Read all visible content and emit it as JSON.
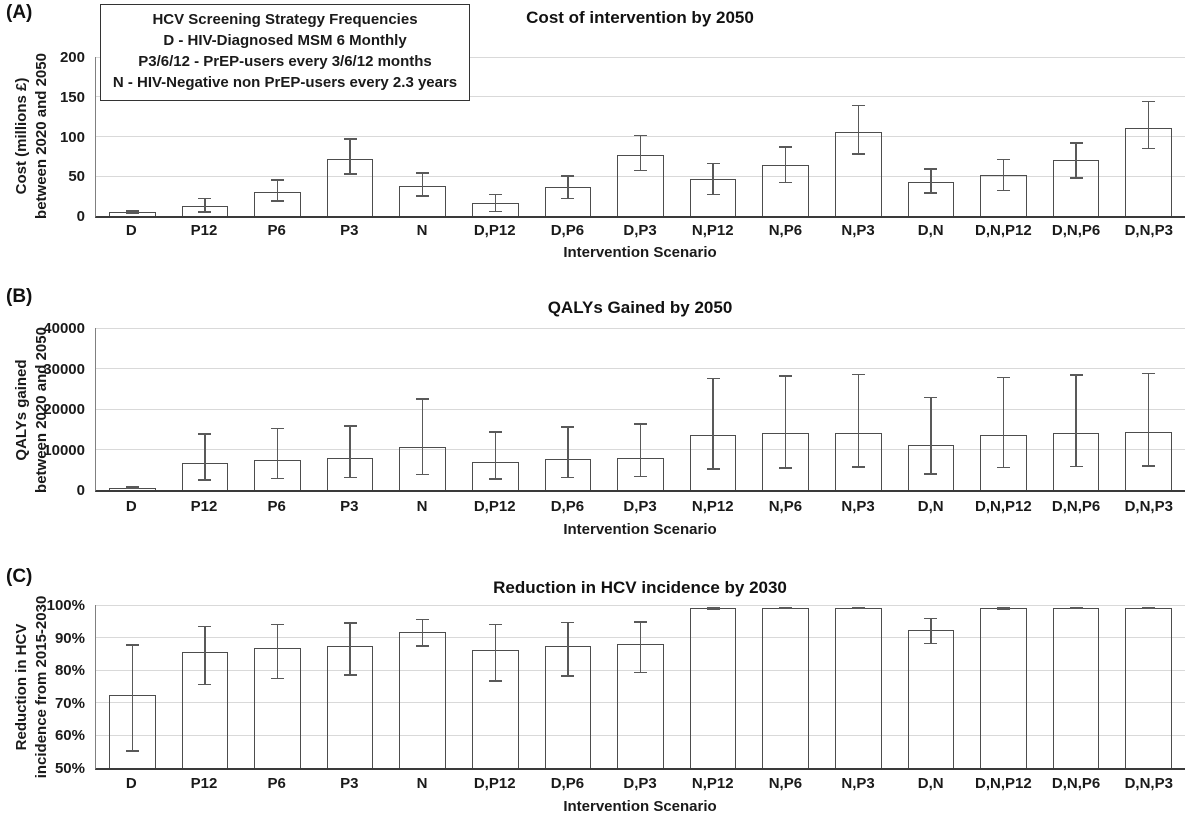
{
  "figure": {
    "legend_box": {
      "title": "HCV Screening Strategy Frequencies",
      "lines": [
        "D - HIV-Diagnosed MSM 6 Monthly",
        "P3/6/12 - PrEP-users every 3/6/12 months",
        "N - HIV-Negative non PrEP-users every 2.3 years"
      ]
    },
    "colors": {
      "bar_border": "#4d4d4d",
      "error_bar": "#595959",
      "gridline": "#d9d9d9",
      "axis": "#3a3a3a",
      "text": "#1a1a1a",
      "background": "#ffffff"
    }
  },
  "chart_data": [
    {
      "type": "bar",
      "panel_label": "(A)",
      "title": "Cost of intervention by 2050",
      "xlabel": "Intervention Scenario",
      "ylabel": "Cost (millions £)\nbetween 2020 and 2050",
      "ylim": [
        0,
        200
      ],
      "yticks": [
        0,
        50,
        100,
        150,
        200
      ],
      "ytick_suffix": "",
      "grid": true,
      "error_bars": true,
      "categories": [
        "D",
        "P12",
        "P6",
        "P3",
        "N",
        "D,P12",
        "D,P6",
        "D,P3",
        "N,P12",
        "N,P6",
        "N,P3",
        "D,N",
        "D,N,P12",
        "D,N,P6",
        "D,N,P3"
      ],
      "values": [
        5,
        12,
        30,
        72,
        38,
        17,
        36,
        77,
        46,
        64,
        106,
        43,
        51,
        70,
        111
      ],
      "error_low": [
        3,
        4,
        18,
        52,
        24,
        5,
        21,
        56,
        26,
        41,
        77,
        28,
        31,
        47,
        84
      ],
      "error_high": [
        7,
        23,
        46,
        98,
        55,
        28,
        51,
        102,
        67,
        88,
        140,
        60,
        72,
        93,
        145
      ]
    },
    {
      "type": "bar",
      "panel_label": "(B)",
      "title": "QALYs Gained by 2050",
      "xlabel": "Intervention Scenario",
      "ylabel": "QALYs gained\nbetween 2020 and 2050",
      "ylim": [
        0,
        40000
      ],
      "yticks": [
        0,
        10000,
        20000,
        30000,
        40000
      ],
      "ytick_suffix": "",
      "grid": true,
      "error_bars": true,
      "categories": [
        "D",
        "P12",
        "P6",
        "P3",
        "N",
        "D,P12",
        "D,P6",
        "D,P3",
        "N,P12",
        "N,P6",
        "N,P3",
        "D,N",
        "D,N,P12",
        "D,N,P6",
        "D,N,P3"
      ],
      "values": [
        500,
        6700,
        7400,
        7800,
        10700,
        7000,
        7700,
        8000,
        13700,
        14000,
        14200,
        11000,
        13700,
        14200,
        14300
      ],
      "error_low": [
        200,
        2300,
        2700,
        2900,
        3700,
        2500,
        2900,
        3100,
        5000,
        5300,
        5500,
        3800,
        5400,
        5600,
        5800
      ],
      "error_high": [
        900,
        14000,
        15400,
        16000,
        22700,
        14500,
        15700,
        16500,
        27700,
        28400,
        28700,
        23000,
        28000,
        28600,
        28900
      ]
    },
    {
      "type": "bar",
      "panel_label": "(C)",
      "title": "Reduction in HCV incidence by 2030",
      "xlabel": "Intervention Scenario",
      "ylabel": "Reduction in HCV\nincidence from 2015-2030",
      "ylim": [
        50,
        100
      ],
      "yticks": [
        50,
        60,
        70,
        80,
        90,
        100
      ],
      "ytick_suffix": "%",
      "grid": true,
      "error_bars": true,
      "categories": [
        "D",
        "P12",
        "P6",
        "P3",
        "N",
        "D,P12",
        "D,P6",
        "D,P3",
        "N,P12",
        "N,P6",
        "N,P3",
        "D,N",
        "D,N,P12",
        "D,N,P6",
        "D,N,P3"
      ],
      "values": [
        72.5,
        85.6,
        86.7,
        87.3,
        91.8,
        86.3,
        87.4,
        88.0,
        99.0,
        99.1,
        99.2,
        92.3,
        99.0,
        99.1,
        99.2
      ],
      "error_low": [
        55.0,
        75.4,
        77.3,
        78.3,
        87.2,
        76.4,
        78.0,
        79.0,
        98.6,
        98.7,
        98.8,
        88.0,
        98.6,
        98.7,
        98.8
      ],
      "error_high": [
        88.0,
        93.7,
        94.3,
        94.7,
        95.8,
        94.3,
        94.8,
        95.0,
        99.3,
        99.4,
        99.5,
        96.1,
        99.3,
        99.4,
        99.5
      ]
    }
  ]
}
